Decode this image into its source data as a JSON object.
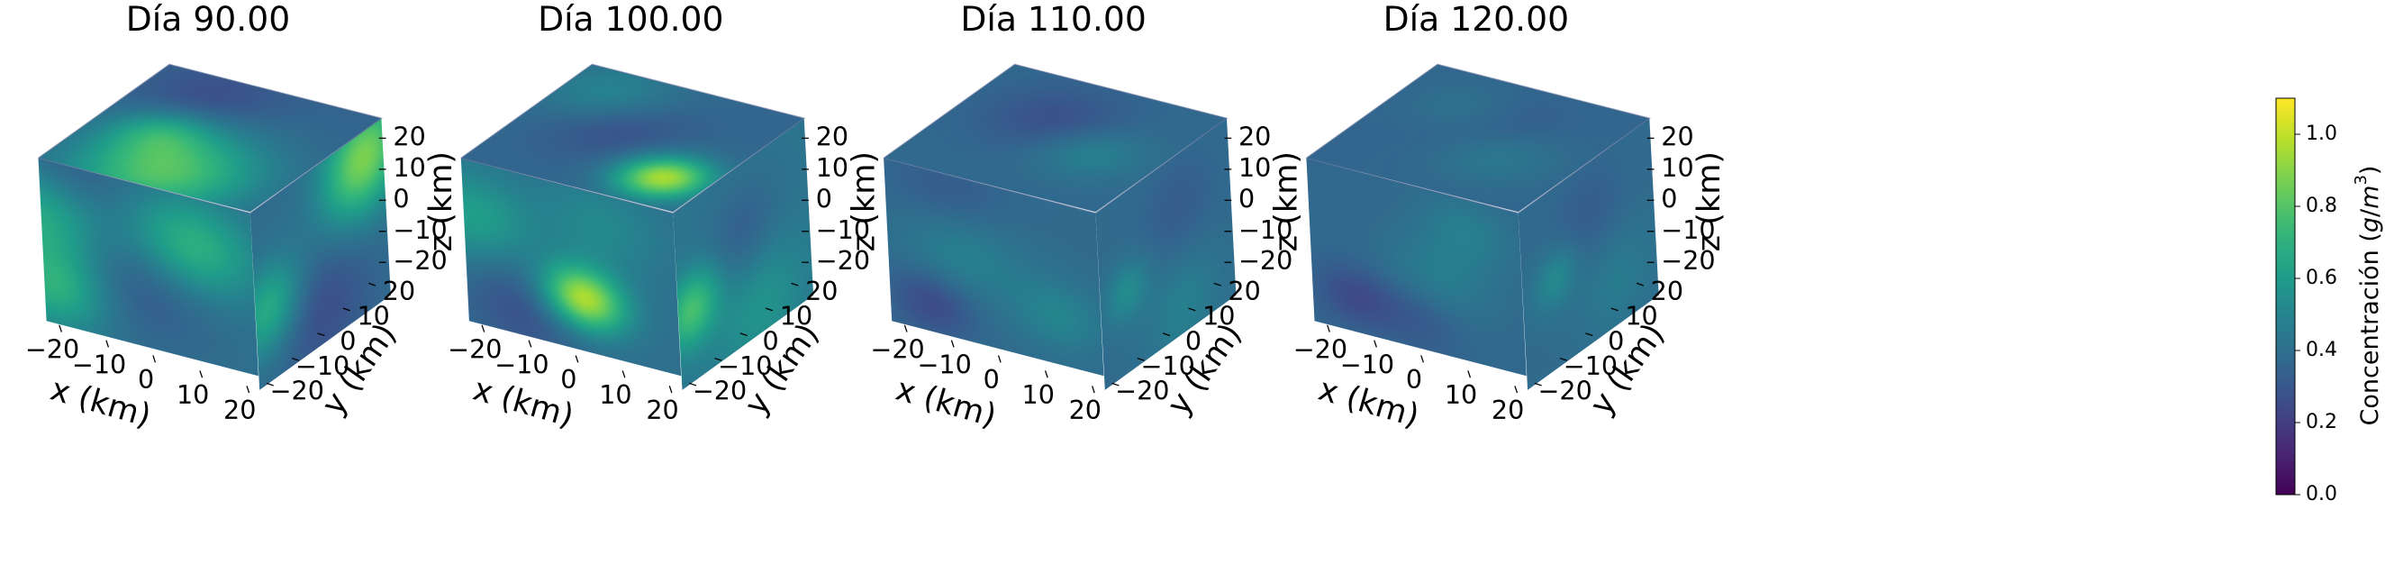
{
  "chart_data": {
    "type": "heatmap",
    "panels": [
      {
        "title": "Día 90.00",
        "day": 90
      },
      {
        "title": "Día 100.00",
        "day": 100
      },
      {
        "title": "Día 110.00",
        "day": 110
      },
      {
        "title": "Día 120.00",
        "day": 120
      }
    ],
    "axes": {
      "xlabel": "x (km)",
      "ylabel": "y (km)",
      "zlabel": "z (km)",
      "x_ticks": [
        "−20",
        "−10",
        "0",
        "10",
        "20"
      ],
      "y_ticks": [
        "−20",
        "−10",
        "0",
        "10",
        "20"
      ],
      "z_ticks": [
        "20",
        "10",
        "0",
        "−10",
        "−20"
      ],
      "xlim": [
        -25,
        25
      ],
      "ylim": [
        -25,
        25
      ],
      "zlim": [
        -25,
        25
      ]
    },
    "colorbar": {
      "label": "Concentración (g/m³)",
      "label_text": "Concentración (",
      "label_unit_g": "g",
      "label_unit_m": "m",
      "label_unit_exp": "3",
      "label_close": ")",
      "ticks": [
        "0.0",
        "0.2",
        "0.4",
        "0.6",
        "0.8",
        "1.0"
      ],
      "tick_values": [
        0.0,
        0.2,
        0.4,
        0.6,
        0.8,
        1.0
      ],
      "range": [
        0.0,
        1.1
      ],
      "colormap": "viridis"
    }
  }
}
